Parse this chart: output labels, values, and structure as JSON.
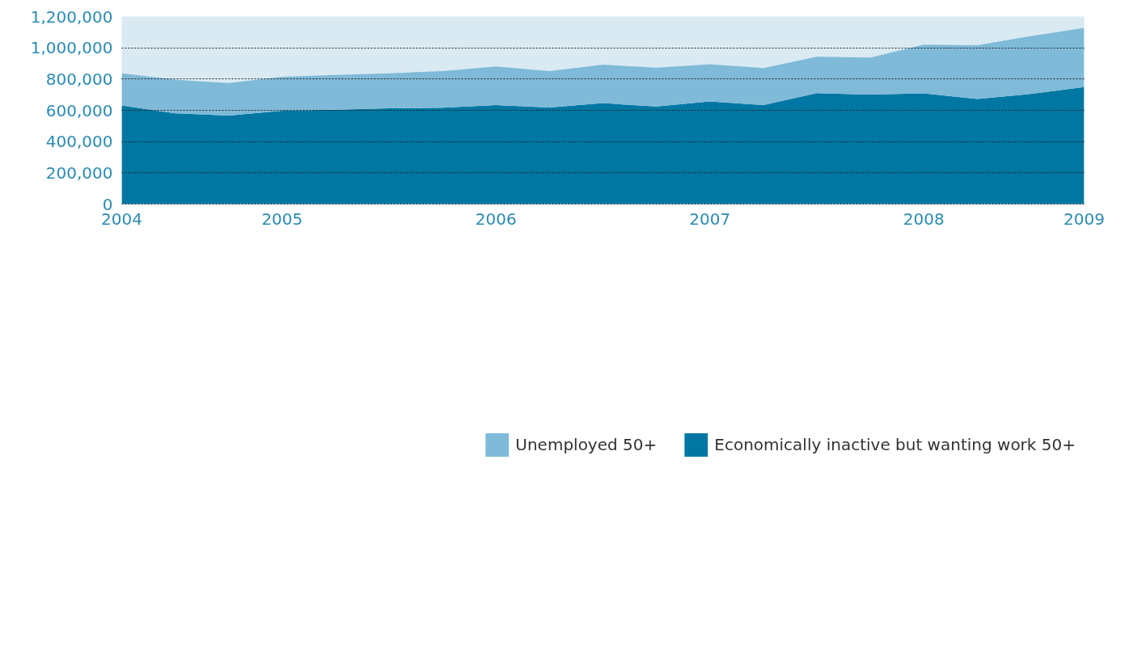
{
  "chart_data": {
    "type": "area",
    "stacked": true,
    "x": [
      2004.25,
      2004.5,
      2004.75,
      2005,
      2005.25,
      2005.5,
      2005.75,
      2006,
      2006.25,
      2006.5,
      2006.75,
      2007,
      2007.25,
      2007.5,
      2007.75,
      2008,
      2008.25,
      2008.5,
      2008.75
    ],
    "series": [
      {
        "name": "Economically inactive but wanting work 50+",
        "color": "#0077a3",
        "values": [
          631000,
          580000,
          567000,
          598000,
          604000,
          613000,
          617000,
          633000,
          618000,
          646000,
          624000,
          657000,
          633000,
          710000,
          701000,
          708000,
          672000,
          705000,
          749000
        ]
      },
      {
        "name": "Unemployed 50+",
        "color": "#7fbad8",
        "values": [
          206000,
          216000,
          207000,
          217000,
          222000,
          224000,
          234000,
          248000,
          233000,
          246000,
          249000,
          238000,
          237000,
          233000,
          237000,
          312000,
          345000,
          370000,
          379000
        ]
      }
    ],
    "xlim": [
      2004.25,
      2008.75
    ],
    "xticks": [
      {
        "value": 2004.25,
        "label": "2004"
      },
      2005,
      2006,
      2007,
      2008,
      {
        "value": 2008.75,
        "label": "2009"
      }
    ],
    "ylim": [
      0,
      1200000
    ],
    "yticks": [
      {
        "value": 0,
        "label": "0"
      },
      {
        "value": 200000,
        "label": "200,000"
      },
      {
        "value": 400000,
        "label": "400,000"
      },
      {
        "value": 600000,
        "label": "600,000"
      },
      {
        "value": 800000,
        "label": "800,000"
      },
      {
        "value": 1000000,
        "label": "1,000,000"
      },
      {
        "value": 1200000,
        "label": "1,200,000"
      }
    ],
    "grid": "y",
    "legend": "bottom"
  }
}
